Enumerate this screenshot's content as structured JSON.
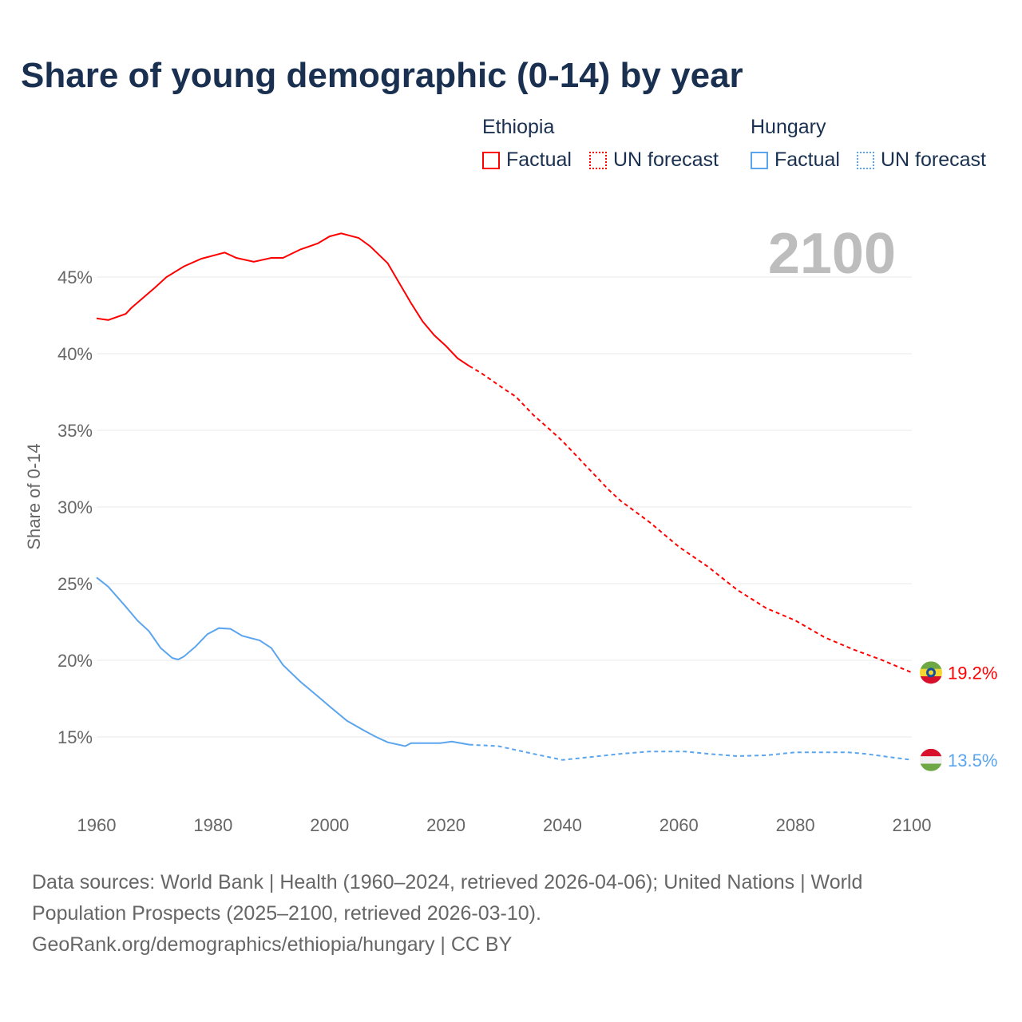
{
  "title": "Share of young demographic (0-14) by year",
  "legend": {
    "groups": [
      {
        "name": "Ethiopia",
        "factual": "Factual",
        "forecast": "UN forecast",
        "color": "#ff0000"
      },
      {
        "name": "Hungary",
        "factual": "Factual",
        "forecast": "UN forecast",
        "color": "#5aa5ee"
      }
    ]
  },
  "year_label": "2100",
  "footer": {
    "line1": "Data sources: World Bank | Health (1960–2024, retrieved 2026-04-06); United Nations | World",
    "line2": "Population Prospects (2025–2100, retrieved 2026-03-10).",
    "line3": "GeoRank.org/demographics/ethiopia/hungary | CC BY"
  },
  "chart_data": {
    "type": "line",
    "title": "Share of young demographic (0-14) by year",
    "xlabel": "",
    "ylabel": "Share of 0-14",
    "xlim": [
      1960,
      2100
    ],
    "ylim": [
      12,
      48
    ],
    "grid": true,
    "xticks": [
      1960,
      1980,
      2000,
      2020,
      2040,
      2060,
      2080,
      2100
    ],
    "yticks": [
      15,
      20,
      25,
      30,
      35,
      40,
      45
    ],
    "ytick_labels": [
      "15%",
      "20%",
      "25%",
      "30%",
      "35%",
      "40%",
      "45%"
    ],
    "forecast_start": 2024,
    "series": [
      {
        "name": "Ethiopia",
        "color": "#ff0000",
        "end_label": "19.2%",
        "points": [
          [
            1960,
            42.3
          ],
          [
            1962,
            42.2
          ],
          [
            1965,
            42.6
          ],
          [
            1966,
            43
          ],
          [
            1970,
            44.3
          ],
          [
            1972,
            45
          ],
          [
            1975,
            45.7
          ],
          [
            1978,
            46.2
          ],
          [
            1982,
            46.6
          ],
          [
            1984,
            46.25
          ],
          [
            1987,
            46.0
          ],
          [
            1990,
            46.25
          ],
          [
            1992,
            46.25
          ],
          [
            1995,
            46.8
          ],
          [
            1998,
            47.2
          ],
          [
            2000,
            47.65
          ],
          [
            2002,
            47.85
          ],
          [
            2005,
            47.55
          ],
          [
            2007,
            47.0
          ],
          [
            2010,
            45.9
          ],
          [
            2012,
            44.6
          ],
          [
            2014,
            43.3
          ],
          [
            2016,
            42.1
          ],
          [
            2018,
            41.2
          ],
          [
            2020,
            40.5
          ],
          [
            2022,
            39.7
          ],
          [
            2024,
            39.2
          ],
          [
            2026,
            38.75
          ],
          [
            2030,
            37.7
          ],
          [
            2032,
            37.2
          ],
          [
            2035,
            36
          ],
          [
            2038,
            35
          ],
          [
            2040,
            34.3
          ],
          [
            2045,
            32.3
          ],
          [
            2048,
            31.1
          ],
          [
            2050,
            30.4
          ],
          [
            2055,
            29
          ],
          [
            2060,
            27.4
          ],
          [
            2065,
            26.1
          ],
          [
            2070,
            24.6
          ],
          [
            2075,
            23.4
          ],
          [
            2080,
            22.6
          ],
          [
            2085,
            21.5
          ],
          [
            2090,
            20.7
          ],
          [
            2095,
            20
          ],
          [
            2100,
            19.2
          ]
        ]
      },
      {
        "name": "Hungary",
        "color": "#5aa5ee",
        "end_label": "13.5%",
        "points": [
          [
            1960,
            25.4
          ],
          [
            1962,
            24.8
          ],
          [
            1965,
            23.5
          ],
          [
            1967,
            22.6
          ],
          [
            1969,
            21.9
          ],
          [
            1971,
            20.8
          ],
          [
            1973,
            20.15
          ],
          [
            1974,
            20.05
          ],
          [
            1975,
            20.25
          ],
          [
            1977,
            20.9
          ],
          [
            1979,
            21.7
          ],
          [
            1981,
            22.1
          ],
          [
            1983,
            22.05
          ],
          [
            1985,
            21.6
          ],
          [
            1988,
            21.3
          ],
          [
            1990,
            20.8
          ],
          [
            1992,
            19.7
          ],
          [
            1995,
            18.6
          ],
          [
            1998,
            17.65
          ],
          [
            2000,
            17
          ],
          [
            2003,
            16.05
          ],
          [
            2006,
            15.4
          ],
          [
            2008,
            15
          ],
          [
            2010,
            14.65
          ],
          [
            2013,
            14.4
          ],
          [
            2014,
            14.6
          ],
          [
            2019,
            14.6
          ],
          [
            2021,
            14.7
          ],
          [
            2024,
            14.5
          ],
          [
            2029,
            14.4
          ],
          [
            2035,
            13.9
          ],
          [
            2040,
            13.5
          ],
          [
            2045,
            13.7
          ],
          [
            2050,
            13.9
          ],
          [
            2055,
            14.05
          ],
          [
            2061,
            14.05
          ],
          [
            2065,
            13.9
          ],
          [
            2070,
            13.75
          ],
          [
            2075,
            13.8
          ],
          [
            2080,
            14
          ],
          [
            2089,
            14
          ],
          [
            2092,
            13.9
          ],
          [
            2096,
            13.7
          ],
          [
            2100,
            13.5
          ]
        ]
      }
    ]
  }
}
